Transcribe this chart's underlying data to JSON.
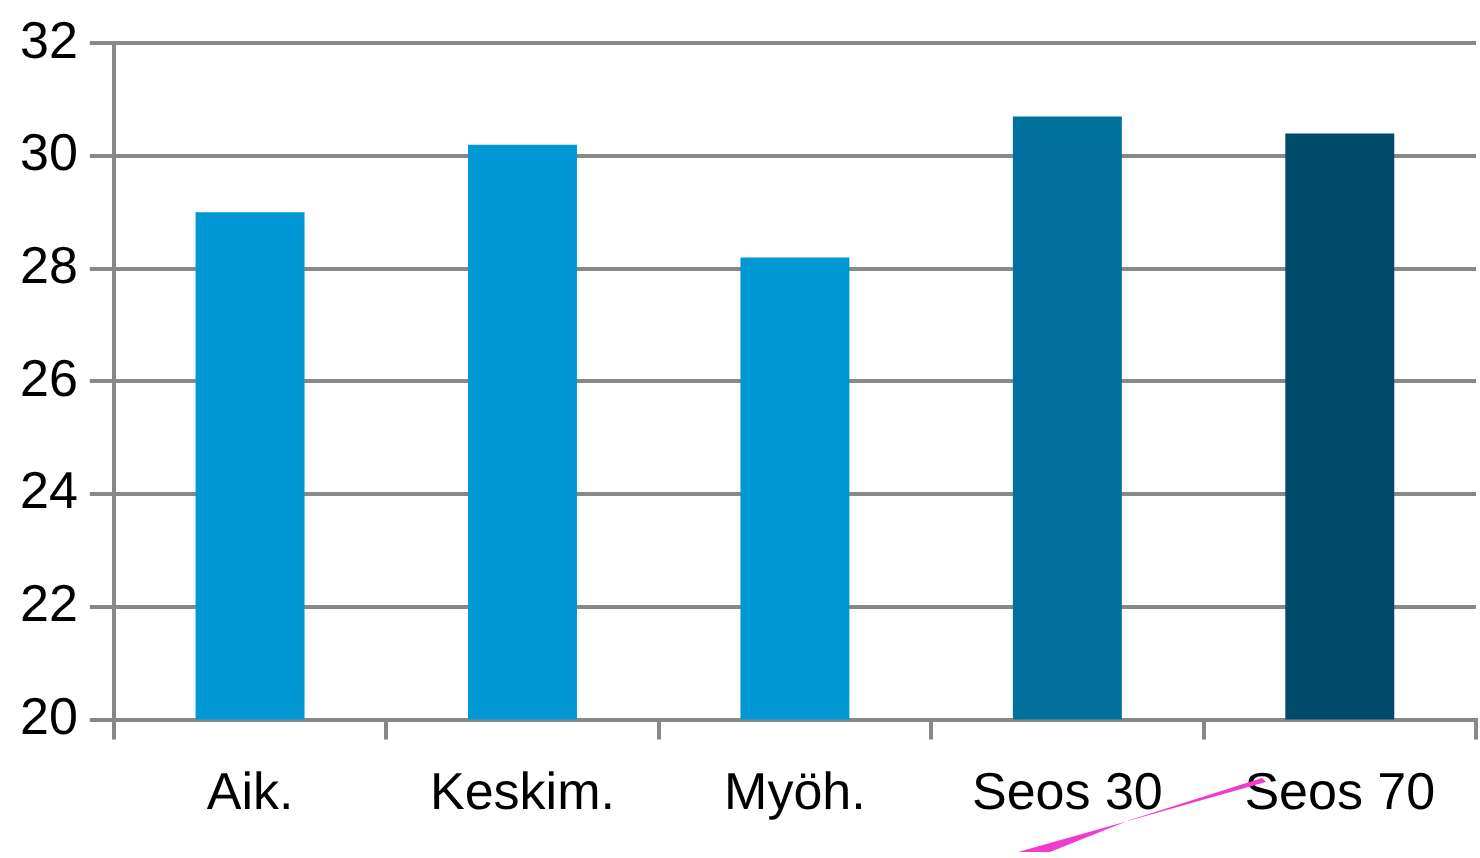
{
  "chart_data": {
    "type": "bar",
    "categories": [
      "Aik.",
      "Keskim.",
      "Myöh.",
      "Seos 30",
      "Seos 70"
    ],
    "values": [
      29.0,
      30.2,
      28.2,
      30.7,
      30.4
    ],
    "colors": [
      "#0098d4",
      "#0098d4",
      "#0098d4",
      "#00709e",
      "#004a6a"
    ],
    "ylim": [
      20,
      32
    ],
    "yticks": [
      20,
      22,
      24,
      26,
      28,
      30,
      32
    ],
    "grid": "y",
    "legend": false
  }
}
